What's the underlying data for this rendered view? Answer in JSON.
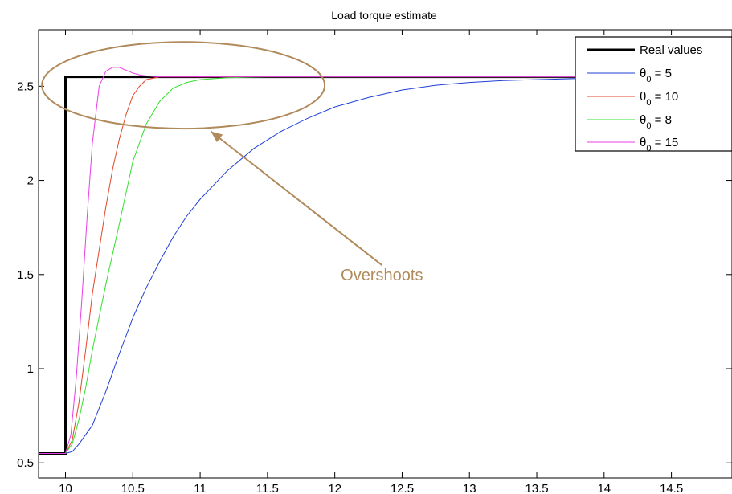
{
  "chart_data": {
    "type": "line",
    "title": "Load torque estimate",
    "xlabel": "",
    "ylabel": "",
    "xlim": [
      9.8,
      14.95
    ],
    "ylim": [
      0.42,
      2.8
    ],
    "xticks": [
      10,
      10.5,
      11,
      11.5,
      12,
      12.5,
      13,
      13.5,
      14,
      14.5
    ],
    "xtick_labels": [
      "10",
      "10.5",
      "11",
      "11.5",
      "12",
      "12.5",
      "13",
      "13.5",
      "14",
      "14.5"
    ],
    "yticks": [
      0.5,
      1,
      1.5,
      2,
      2.5
    ],
    "ytick_labels": [
      "0.5",
      "1",
      "1.5",
      "2",
      "2.5"
    ],
    "grid": false,
    "legend_position": "top-right",
    "series": [
      {
        "name": "Real values",
        "color": "#000000",
        "width": 3,
        "x": [
          9.8,
          10.0,
          10.0,
          14.95
        ],
        "y": [
          0.55,
          0.55,
          2.55,
          2.55
        ]
      },
      {
        "name_prefix": "θ",
        "name_sub": "0",
        "name_suffix": " = 5",
        "color": "#1f3fd6",
        "width": 1,
        "x": [
          9.8,
          10.0,
          10.05,
          10.1,
          10.15,
          10.2,
          10.3,
          10.4,
          10.5,
          10.6,
          10.7,
          10.8,
          10.9,
          11.0,
          11.2,
          11.4,
          11.6,
          11.8,
          12.0,
          12.25,
          12.5,
          12.75,
          13.0,
          13.25,
          13.5,
          13.75,
          14.0,
          14.5,
          14.95
        ],
        "y": [
          0.55,
          0.55,
          0.56,
          0.6,
          0.65,
          0.7,
          0.88,
          1.08,
          1.27,
          1.43,
          1.57,
          1.7,
          1.81,
          1.9,
          2.05,
          2.17,
          2.26,
          2.33,
          2.39,
          2.44,
          2.48,
          2.505,
          2.52,
          2.53,
          2.535,
          2.54,
          2.545,
          2.55,
          2.55
        ]
      },
      {
        "name_prefix": "θ",
        "name_sub": "0",
        "name_suffix": " = 10",
        "color": "#e0472a",
        "width": 1,
        "x": [
          9.8,
          10.0,
          10.05,
          10.1,
          10.15,
          10.2,
          10.25,
          10.3,
          10.35,
          10.4,
          10.45,
          10.5,
          10.55,
          10.6,
          10.7,
          10.8,
          11.0,
          11.5,
          14.95
        ],
        "y": [
          0.55,
          0.55,
          0.62,
          0.82,
          1.1,
          1.4,
          1.63,
          1.86,
          2.06,
          2.22,
          2.35,
          2.45,
          2.5,
          2.535,
          2.55,
          2.55,
          2.55,
          2.55,
          2.55
        ]
      },
      {
        "name_prefix": "θ",
        "name_sub": "0",
        "name_suffix": " = 8",
        "color": "#33e02e",
        "width": 1,
        "x": [
          9.8,
          10.0,
          10.05,
          10.1,
          10.15,
          10.2,
          10.3,
          10.4,
          10.5,
          10.55,
          10.6,
          10.7,
          10.8,
          10.9,
          11.0,
          11.2,
          11.5,
          12.0,
          14.95
        ],
        "y": [
          0.55,
          0.55,
          0.6,
          0.73,
          0.9,
          1.1,
          1.45,
          1.77,
          2.1,
          2.2,
          2.3,
          2.42,
          2.49,
          2.52,
          2.535,
          2.545,
          2.55,
          2.55,
          2.55
        ]
      },
      {
        "name_prefix": "θ",
        "name_sub": "0",
        "name_suffix": " = 15",
        "color": "#e83ee8",
        "width": 1,
        "x": [
          9.8,
          10.0,
          10.04,
          10.08,
          10.12,
          10.16,
          10.2,
          10.25,
          10.3,
          10.35,
          10.4,
          10.45,
          10.5,
          10.55,
          10.6,
          10.7,
          10.8,
          11.0,
          14.95
        ],
        "y": [
          0.55,
          0.55,
          0.65,
          0.95,
          1.35,
          1.8,
          2.2,
          2.5,
          2.58,
          2.6,
          2.6,
          2.585,
          2.57,
          2.56,
          2.555,
          2.55,
          2.55,
          2.55,
          2.55
        ]
      }
    ],
    "annotations": [
      {
        "text": "Overshoots",
        "color": "#b08a5a",
        "ellipse": {
          "cx": 10.875,
          "cy": 2.505,
          "rx": 1.05,
          "ry": 0.23
        },
        "arrow_from": [
          12.35,
          1.55
        ],
        "arrow_to": [
          11.08,
          2.26
        ],
        "text_at": [
          12.35,
          1.47
        ]
      }
    ]
  }
}
